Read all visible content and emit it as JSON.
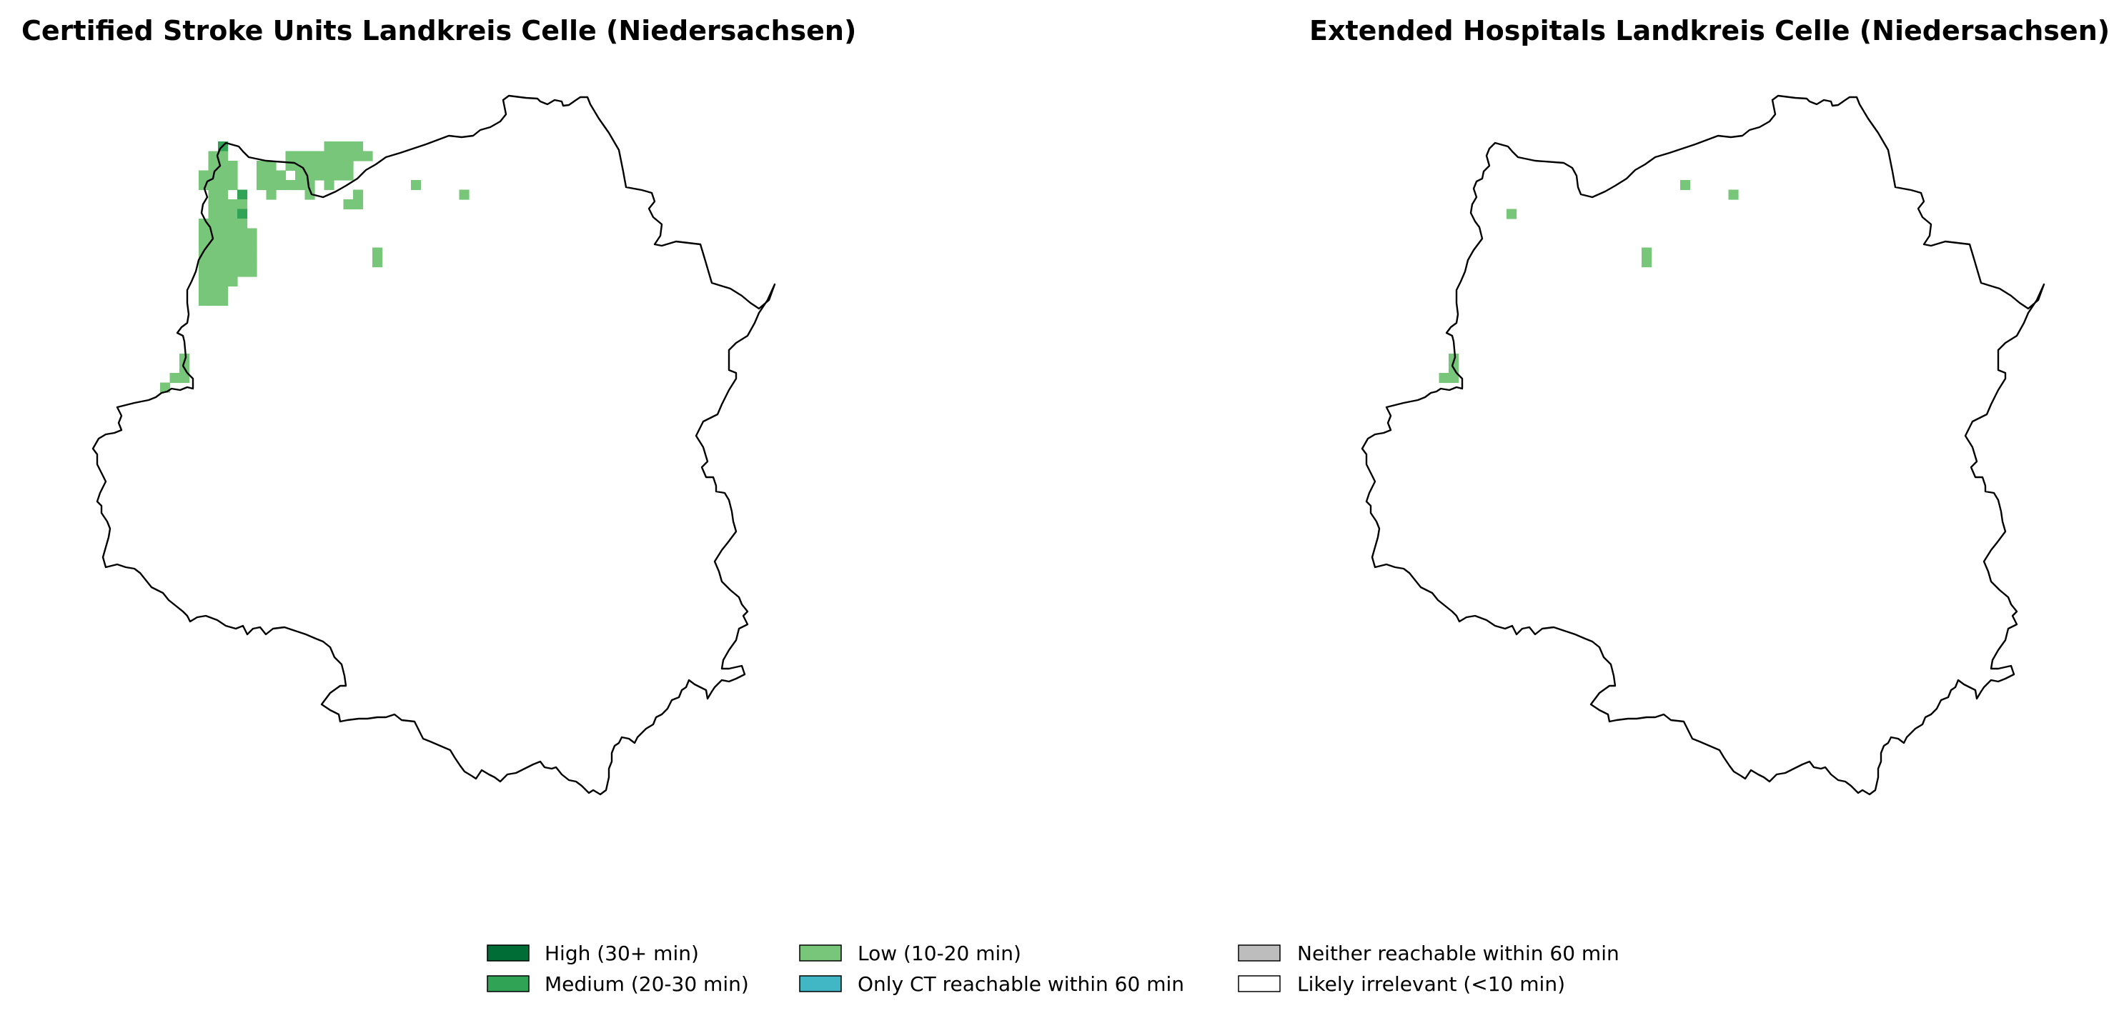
{
  "panels": [
    {
      "title": "Certified Stroke Units Landkreis Celle (Niedersachsen)",
      "grid_cells": [
        {
          "row": 0,
          "col": 2,
          "level": "medium"
        },
        {
          "row": 0,
          "col": 13,
          "level": "low"
        },
        {
          "row": 0,
          "col": 14,
          "level": "low"
        },
        {
          "row": 0,
          "col": 15,
          "level": "low"
        },
        {
          "row": 0,
          "col": 16,
          "level": "low"
        },
        {
          "row": 1,
          "col": 1,
          "level": "low"
        },
        {
          "row": 1,
          "col": 2,
          "level": "low"
        },
        {
          "row": 1,
          "col": 9,
          "level": "low"
        },
        {
          "row": 1,
          "col": 10,
          "level": "low"
        },
        {
          "row": 1,
          "col": 11,
          "level": "low"
        },
        {
          "row": 1,
          "col": 12,
          "level": "low"
        },
        {
          "row": 1,
          "col": 13,
          "level": "low"
        },
        {
          "row": 1,
          "col": 14,
          "level": "low"
        },
        {
          "row": 1,
          "col": 15,
          "level": "low"
        },
        {
          "row": 1,
          "col": 16,
          "level": "low"
        },
        {
          "row": 1,
          "col": 17,
          "level": "low"
        },
        {
          "row": 2,
          "col": 1,
          "level": "low"
        },
        {
          "row": 2,
          "col": 2,
          "level": "low"
        },
        {
          "row": 2,
          "col": 3,
          "level": "low"
        },
        {
          "row": 2,
          "col": 6,
          "level": "low"
        },
        {
          "row": 2,
          "col": 7,
          "level": "low"
        },
        {
          "row": 2,
          "col": 9,
          "level": "low"
        },
        {
          "row": 2,
          "col": 10,
          "level": "low"
        },
        {
          "row": 2,
          "col": 11,
          "level": "low"
        },
        {
          "row": 2,
          "col": 12,
          "level": "low"
        },
        {
          "row": 2,
          "col": 13,
          "level": "low"
        },
        {
          "row": 2,
          "col": 14,
          "level": "low"
        },
        {
          "row": 2,
          "col": 15,
          "level": "low"
        },
        {
          "row": 3,
          "col": 0,
          "level": "low"
        },
        {
          "row": 3,
          "col": 1,
          "level": "low"
        },
        {
          "row": 3,
          "col": 2,
          "level": "low"
        },
        {
          "row": 3,
          "col": 3,
          "level": "low"
        },
        {
          "row": 3,
          "col": 6,
          "level": "low"
        },
        {
          "row": 3,
          "col": 7,
          "level": "low"
        },
        {
          "row": 3,
          "col": 8,
          "level": "low"
        },
        {
          "row": 3,
          "col": 10,
          "level": "low"
        },
        {
          "row": 3,
          "col": 11,
          "level": "low"
        },
        {
          "row": 3,
          "col": 12,
          "level": "low"
        },
        {
          "row": 3,
          "col": 13,
          "level": "low"
        },
        {
          "row": 3,
          "col": 14,
          "level": "low"
        },
        {
          "row": 3,
          "col": 15,
          "level": "low"
        },
        {
          "row": 4,
          "col": 0,
          "level": "low"
        },
        {
          "row": 4,
          "col": 1,
          "level": "low"
        },
        {
          "row": 4,
          "col": 2,
          "level": "low"
        },
        {
          "row": 4,
          "col": 3,
          "level": "low"
        },
        {
          "row": 4,
          "col": 6,
          "level": "low"
        },
        {
          "row": 4,
          "col": 7,
          "level": "low"
        },
        {
          "row": 4,
          "col": 8,
          "level": "low"
        },
        {
          "row": 4,
          "col": 9,
          "level": "low"
        },
        {
          "row": 4,
          "col": 10,
          "level": "low"
        },
        {
          "row": 4,
          "col": 11,
          "level": "low"
        },
        {
          "row": 4,
          "col": 13,
          "level": "low"
        },
        {
          "row": 4,
          "col": 22,
          "level": "low"
        },
        {
          "row": 5,
          "col": 1,
          "level": "low"
        },
        {
          "row": 5,
          "col": 2,
          "level": "low"
        },
        {
          "row": 5,
          "col": 4,
          "level": "medium"
        },
        {
          "row": 5,
          "col": 7,
          "level": "low"
        },
        {
          "row": 5,
          "col": 11,
          "level": "low"
        },
        {
          "row": 5,
          "col": 16,
          "level": "low"
        },
        {
          "row": 5,
          "col": 27,
          "level": "low"
        },
        {
          "row": 6,
          "col": 1,
          "level": "low"
        },
        {
          "row": 6,
          "col": 2,
          "level": "low"
        },
        {
          "row": 6,
          "col": 3,
          "level": "low"
        },
        {
          "row": 6,
          "col": 4,
          "level": "low"
        },
        {
          "row": 6,
          "col": 15,
          "level": "low"
        },
        {
          "row": 6,
          "col": 16,
          "level": "low"
        },
        {
          "row": 7,
          "col": 1,
          "level": "low"
        },
        {
          "row": 7,
          "col": 2,
          "level": "low"
        },
        {
          "row": 7,
          "col": 3,
          "level": "low"
        },
        {
          "row": 7,
          "col": 4,
          "level": "medium"
        },
        {
          "row": 8,
          "col": 0,
          "level": "low"
        },
        {
          "row": 8,
          "col": 1,
          "level": "low"
        },
        {
          "row": 8,
          "col": 2,
          "level": "low"
        },
        {
          "row": 8,
          "col": 3,
          "level": "low"
        },
        {
          "row": 8,
          "col": 4,
          "level": "low"
        },
        {
          "row": 9,
          "col": 0,
          "level": "low"
        },
        {
          "row": 9,
          "col": 1,
          "level": "low"
        },
        {
          "row": 9,
          "col": 2,
          "level": "low"
        },
        {
          "row": 9,
          "col": 3,
          "level": "low"
        },
        {
          "row": 9,
          "col": 4,
          "level": "low"
        },
        {
          "row": 9,
          "col": 5,
          "level": "low"
        },
        {
          "row": 10,
          "col": 0,
          "level": "low"
        },
        {
          "row": 10,
          "col": 1,
          "level": "low"
        },
        {
          "row": 10,
          "col": 2,
          "level": "low"
        },
        {
          "row": 10,
          "col": 3,
          "level": "low"
        },
        {
          "row": 10,
          "col": 4,
          "level": "low"
        },
        {
          "row": 10,
          "col": 5,
          "level": "low"
        },
        {
          "row": 11,
          "col": 0,
          "level": "low"
        },
        {
          "row": 11,
          "col": 1,
          "level": "low"
        },
        {
          "row": 11,
          "col": 2,
          "level": "low"
        },
        {
          "row": 11,
          "col": 3,
          "level": "low"
        },
        {
          "row": 11,
          "col": 4,
          "level": "low"
        },
        {
          "row": 11,
          "col": 5,
          "level": "low"
        },
        {
          "row": 11,
          "col": 18,
          "level": "low"
        },
        {
          "row": 12,
          "col": 0,
          "level": "low"
        },
        {
          "row": 12,
          "col": 1,
          "level": "low"
        },
        {
          "row": 12,
          "col": 2,
          "level": "low"
        },
        {
          "row": 12,
          "col": 3,
          "level": "low"
        },
        {
          "row": 12,
          "col": 4,
          "level": "low"
        },
        {
          "row": 12,
          "col": 5,
          "level": "low"
        },
        {
          "row": 12,
          "col": 18,
          "level": "low"
        },
        {
          "row": 13,
          "col": 0,
          "level": "low"
        },
        {
          "row": 13,
          "col": 1,
          "level": "low"
        },
        {
          "row": 13,
          "col": 2,
          "level": "low"
        },
        {
          "row": 13,
          "col": 3,
          "level": "low"
        },
        {
          "row": 13,
          "col": 4,
          "level": "low"
        },
        {
          "row": 13,
          "col": 5,
          "level": "low"
        },
        {
          "row": 14,
          "col": 0,
          "level": "low"
        },
        {
          "row": 14,
          "col": 1,
          "level": "low"
        },
        {
          "row": 14,
          "col": 2,
          "level": "low"
        },
        {
          "row": 14,
          "col": 3,
          "level": "low"
        },
        {
          "row": 15,
          "col": 0,
          "level": "low"
        },
        {
          "row": 15,
          "col": 1,
          "level": "low"
        },
        {
          "row": 15,
          "col": 2,
          "level": "low"
        },
        {
          "row": 16,
          "col": 0,
          "level": "low"
        },
        {
          "row": 16,
          "col": 1,
          "level": "low"
        },
        {
          "row": 16,
          "col": 2,
          "level": "low"
        },
        {
          "row": 22,
          "col": -2,
          "level": "low"
        },
        {
          "row": 23,
          "col": -2,
          "level": "low"
        },
        {
          "row": 24,
          "col": -3,
          "level": "low"
        },
        {
          "row": 24,
          "col": -2,
          "level": "low"
        },
        {
          "row": 25,
          "col": -4,
          "level": "low"
        }
      ]
    },
    {
      "title": "Extended Hospitals Landkreis Celle (Niedersachsen)",
      "grid_cells": [
        {
          "row": 4,
          "col": 22,
          "level": "low"
        },
        {
          "row": 5,
          "col": 27,
          "level": "low"
        },
        {
          "row": 7,
          "col": 4,
          "level": "low"
        },
        {
          "row": 11,
          "col": 18,
          "level": "low"
        },
        {
          "row": 12,
          "col": 18,
          "level": "low"
        },
        {
          "row": 22,
          "col": -2,
          "level": "low"
        },
        {
          "row": 23,
          "col": -2,
          "level": "low"
        },
        {
          "row": 24,
          "col": -3,
          "level": "low"
        },
        {
          "row": 24,
          "col": -2,
          "level": "low"
        }
      ]
    }
  ],
  "colors": {
    "high": "#006d37",
    "medium": "#31a354",
    "low": "#78c679",
    "only_ct": "#41b6c4",
    "neither": "#bdbdbd",
    "irrelevant": "#ffffff"
  },
  "legend": [
    {
      "key": "high",
      "label": "High (30+ min)"
    },
    {
      "key": "medium",
      "label": "Medium (20-30 min)"
    },
    {
      "key": "low",
      "label": "Low (10-20 min)"
    },
    {
      "key": "only_ct",
      "label": "Only CT reachable within 60 min"
    },
    {
      "key": "neither",
      "label": "Neither reachable within 60 min"
    },
    {
      "key": "irrelevant",
      "label": "Likely irrelevant (<10 min)"
    }
  ]
}
